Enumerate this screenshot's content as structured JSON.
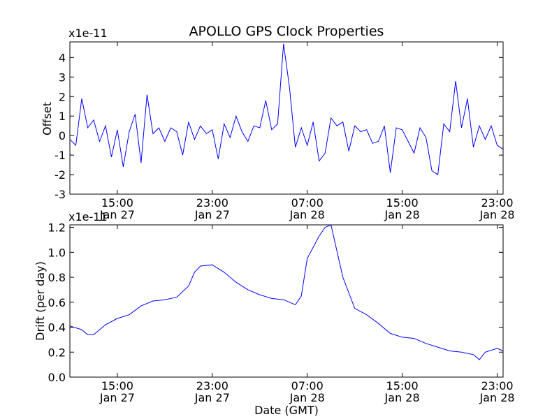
{
  "chart_data": [
    {
      "type": "line",
      "name": "offset",
      "title": "APOLLO GPS Clock Properties",
      "ylabel": "Offset",
      "xlabel": "",
      "scale_label": "x1e-11",
      "x_unit": "hours since Jan 27 11:00 GMT",
      "xlim": [
        0,
        36.5
      ],
      "ylim": [
        -3,
        4.8
      ],
      "yticks": [
        -3,
        -2,
        -1,
        0,
        1,
        2,
        3,
        4
      ],
      "ytick_labels": [
        "-3",
        "-2",
        "-1",
        "0",
        "1",
        "2",
        "3",
        "4"
      ],
      "xticks": [
        {
          "x": 4,
          "time": "15:00",
          "date": "Jan 27"
        },
        {
          "x": 12,
          "time": "23:00",
          "date": "Jan 27"
        },
        {
          "x": 20,
          "time": "07:00",
          "date": "Jan 28"
        },
        {
          "x": 28,
          "time": "15:00",
          "date": "Jan 28"
        },
        {
          "x": 36,
          "time": "23:00",
          "date": "Jan 28"
        }
      ],
      "color": "#0000ff",
      "series": [
        {
          "name": "Offset",
          "x": [
            0,
            0.5,
            1,
            1.5,
            2,
            2.5,
            3,
            3.5,
            4,
            4.5,
            5,
            5.5,
            6,
            6.5,
            7,
            7.5,
            8,
            8.5,
            9,
            9.5,
            10,
            10.5,
            11,
            11.5,
            12,
            12.5,
            13,
            13.5,
            14,
            14.5,
            15,
            15.5,
            16,
            16.5,
            17,
            17.5,
            18,
            18.5,
            19,
            19.5,
            20,
            20.5,
            21,
            21.5,
            22,
            22.5,
            23,
            23.5,
            24,
            24.5,
            25,
            25.5,
            26,
            26.5,
            27,
            27.5,
            28,
            28.5,
            29,
            29.5,
            30,
            30.5,
            31,
            31.5,
            32,
            32.5,
            33,
            33.5,
            34,
            34.5,
            35,
            35.5,
            36,
            36.5
          ],
          "y": [
            -0.2,
            -0.5,
            1.9,
            0.4,
            0.8,
            -0.3,
            0.5,
            -1.1,
            0.3,
            -1.6,
            0.2,
            1.1,
            -1.4,
            2.1,
            0.1,
            0.4,
            -0.3,
            0.4,
            0.2,
            -1.0,
            0.7,
            -0.2,
            0.5,
            0.1,
            0.3,
            -1.2,
            0.6,
            -0.1,
            1.0,
            0.2,
            -0.3,
            0.5,
            0.4,
            1.8,
            0.3,
            0.6,
            4.7,
            2.5,
            -0.6,
            0.4,
            -0.5,
            0.7,
            -1.3,
            -0.9,
            0.9,
            0.5,
            0.7,
            -0.8,
            0.5,
            0.2,
            0.3,
            -0.4,
            -0.3,
            0.5,
            -1.9,
            0.4,
            0.3,
            -0.3,
            -0.9,
            0.4,
            -0.1,
            -1.8,
            -2.0,
            0.6,
            0.2,
            2.8,
            0.4,
            1.9,
            -0.6,
            0.5,
            -0.2,
            0.5,
            -0.5,
            -0.7
          ]
        }
      ]
    },
    {
      "type": "line",
      "name": "drift",
      "title": "",
      "ylabel": "Drift (per day)",
      "xlabel": "Date (GMT)",
      "scale_label": "x1e-11",
      "x_unit": "hours since Jan 27 11:00 GMT",
      "xlim": [
        0,
        36.5
      ],
      "ylim": [
        0.0,
        1.22
      ],
      "yticks": [
        0.0,
        0.2,
        0.4,
        0.6,
        0.8,
        1.0,
        1.2
      ],
      "ytick_labels": [
        "0.0",
        "0.2",
        "0.4",
        "0.6",
        "0.8",
        "1.0",
        "1.2"
      ],
      "xticks": [
        {
          "x": 4,
          "time": "15:00",
          "date": "Jan 27"
        },
        {
          "x": 12,
          "time": "23:00",
          "date": "Jan 27"
        },
        {
          "x": 20,
          "time": "07:00",
          "date": "Jan 28"
        },
        {
          "x": 28,
          "time": "15:00",
          "date": "Jan 28"
        },
        {
          "x": 36,
          "time": "23:00",
          "date": "Jan 28"
        }
      ],
      "color": "#0000ff",
      "series": [
        {
          "name": "Drift",
          "x": [
            0,
            1,
            1.5,
            2,
            3,
            4,
            5,
            6,
            7,
            8,
            9,
            10,
            10.5,
            11,
            12,
            13,
            14,
            15,
            16,
            17,
            18,
            19,
            19.5,
            20,
            21,
            21.5,
            22,
            23,
            24,
            25,
            26,
            27,
            28,
            29,
            30,
            31,
            32,
            33,
            34,
            34.5,
            35,
            36,
            36.5
          ],
          "y": [
            0.41,
            0.38,
            0.34,
            0.34,
            0.42,
            0.47,
            0.5,
            0.57,
            0.61,
            0.62,
            0.64,
            0.73,
            0.84,
            0.89,
            0.9,
            0.84,
            0.76,
            0.7,
            0.66,
            0.63,
            0.62,
            0.58,
            0.65,
            0.95,
            1.13,
            1.2,
            1.22,
            0.8,
            0.55,
            0.5,
            0.43,
            0.35,
            0.32,
            0.31,
            0.27,
            0.24,
            0.21,
            0.2,
            0.18,
            0.14,
            0.2,
            0.23,
            0.21
          ]
        }
      ]
    }
  ]
}
